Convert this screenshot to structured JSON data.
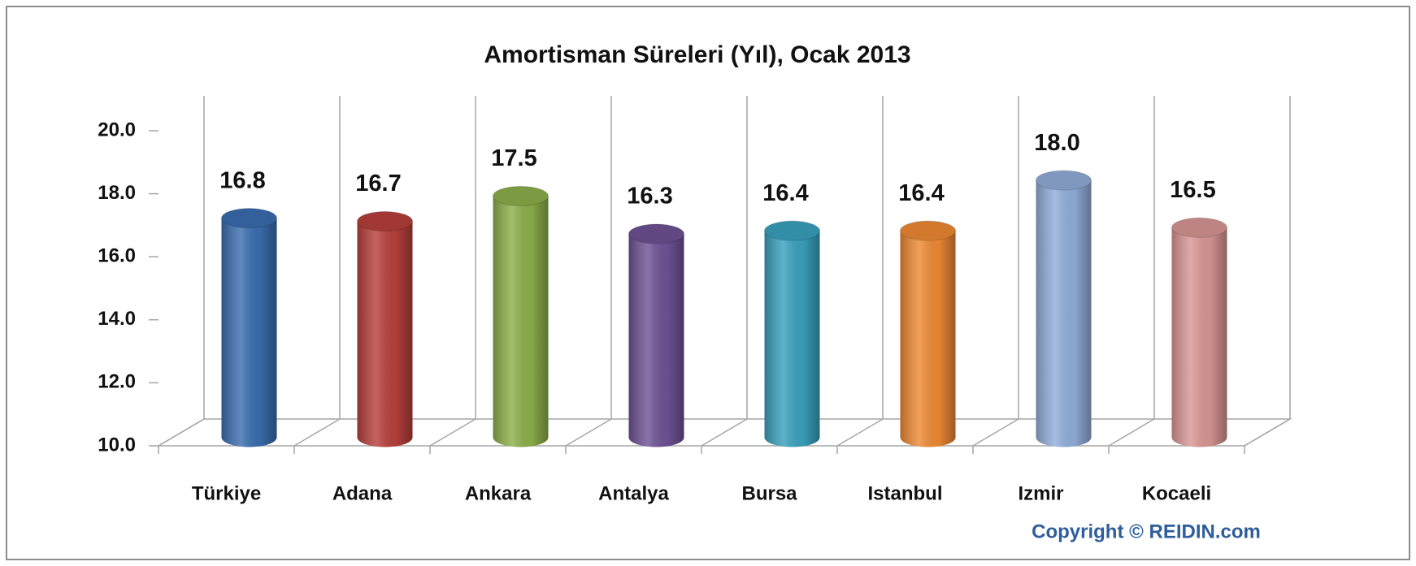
{
  "chart_data": {
    "type": "bar3d",
    "title": "Amortisman Süreleri (Yıl), Ocak 2013",
    "categories": [
      "Türkiye",
      "Adana",
      "Ankara",
      "Antalya",
      "Bursa",
      "Istanbul",
      "Izmir",
      "Kocaeli"
    ],
    "values": [
      16.8,
      16.7,
      17.5,
      16.3,
      16.4,
      16.4,
      18.0,
      16.5
    ],
    "value_labels": [
      "16.8",
      "16.7",
      "17.5",
      "16.3",
      "16.4",
      "16.4",
      "18.0",
      "16.5"
    ],
    "colors": [
      "#3b6eb0",
      "#b8403d",
      "#8db04a",
      "#6f5396",
      "#3aa2bd",
      "#ef8a34",
      "#92aedb",
      "#d99795"
    ],
    "ylim": [
      10,
      20
    ],
    "yticks": [
      {
        "value": 10,
        "label": "10.0"
      },
      {
        "value": 12,
        "label": "12.0"
      },
      {
        "value": 14,
        "label": "14.0"
      },
      {
        "value": 16,
        "label": "16.0"
      },
      {
        "value": 18,
        "label": "18.0"
      },
      {
        "value": 20,
        "label": "20.0"
      }
    ],
    "copyright": "Copyright © REIDIN.com"
  }
}
